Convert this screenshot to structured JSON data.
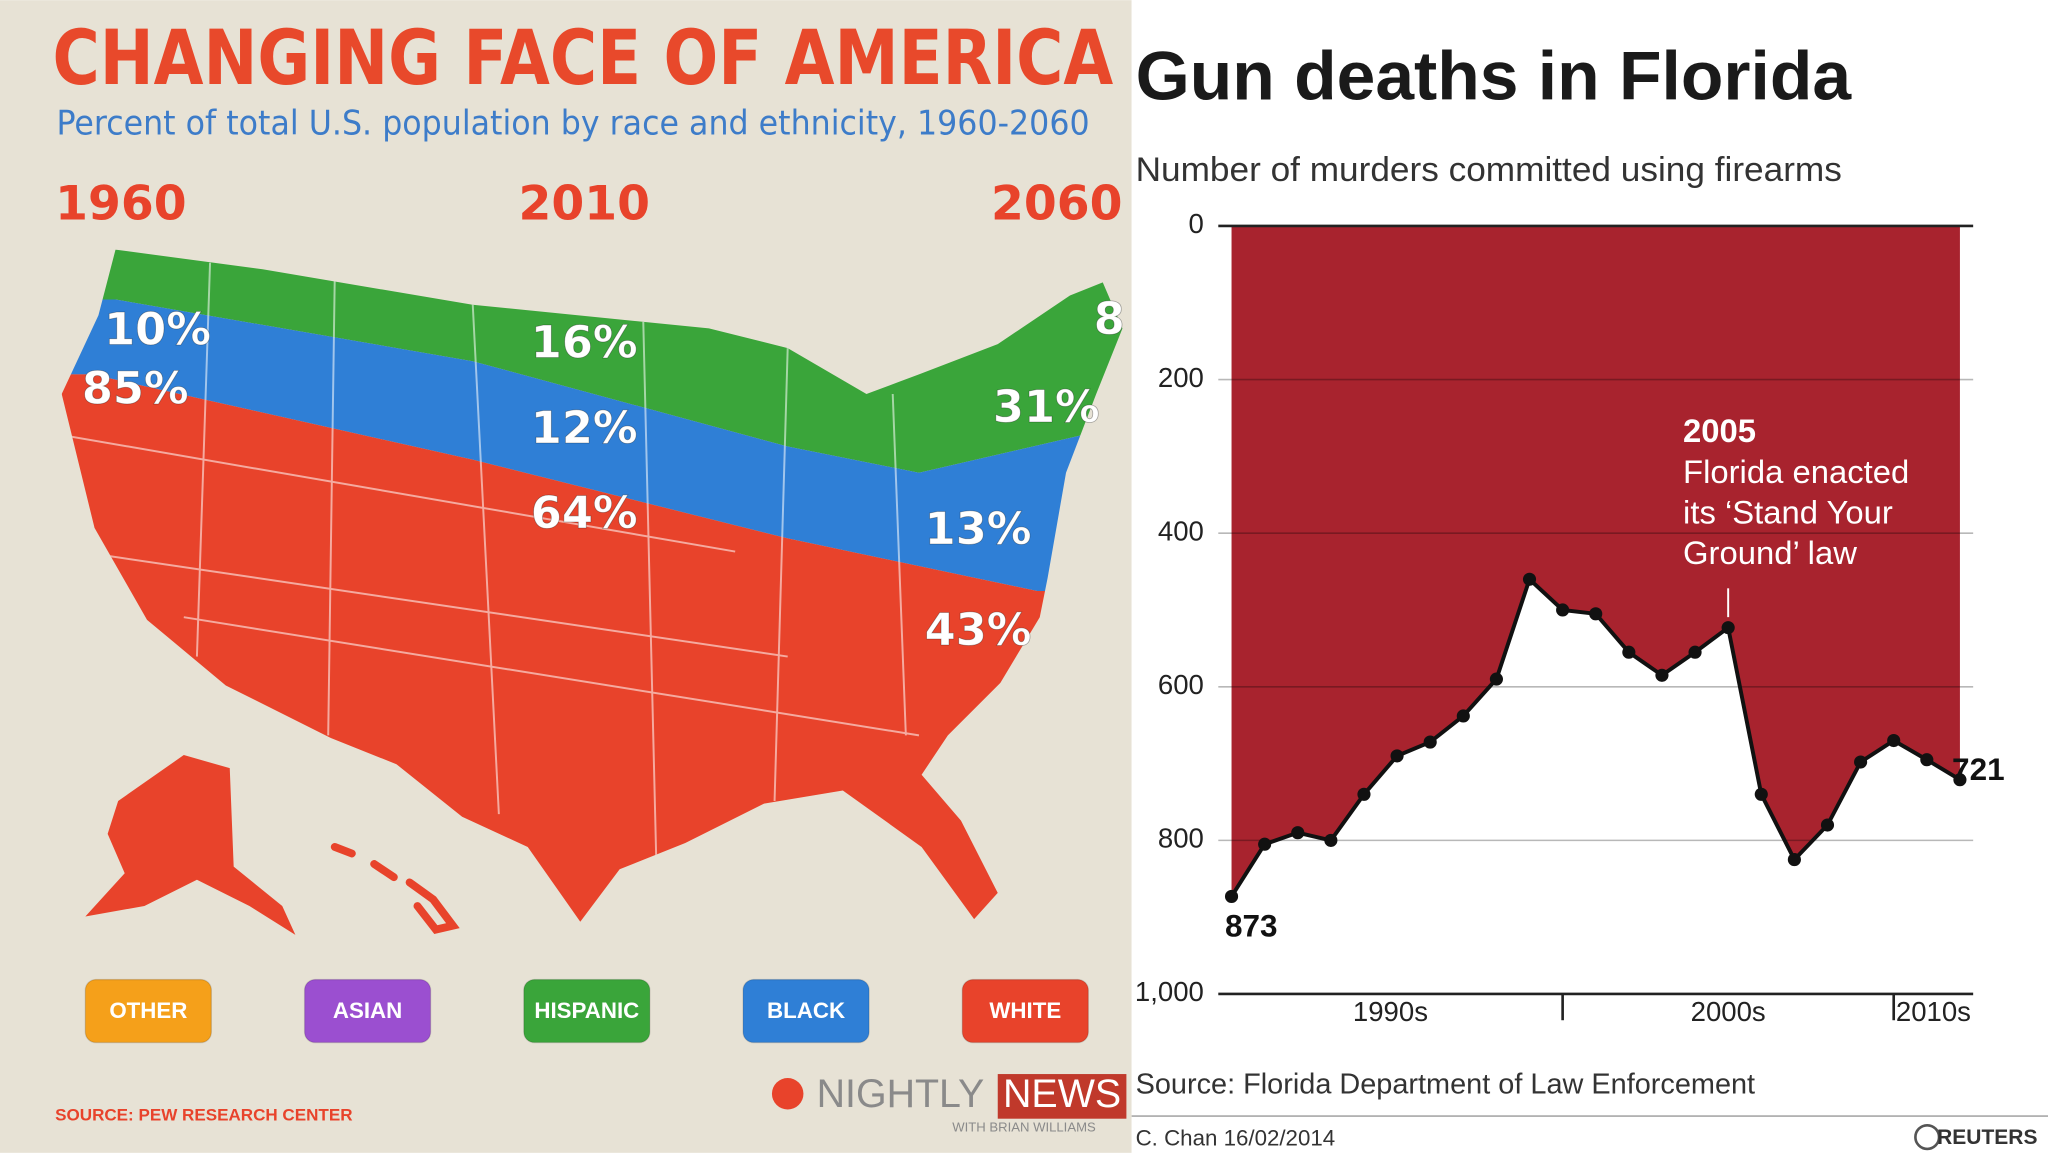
{
  "chart_data": [
    {
      "type": "map",
      "title": "CHANGING FACE OF AMERICA",
      "subtitle": "Percent of total U.S. population by race and ethnicity, 1960-2060",
      "categories": [
        "1960",
        "2010",
        "2060"
      ],
      "series": [
        {
          "name": "OTHER",
          "color": "#f5a01a",
          "values": [
            null,
            null,
            null
          ],
          "value_labels": [
            null,
            null,
            null
          ]
        },
        {
          "name": "ASIAN",
          "color": "#9b4fd0",
          "values": [
            null,
            null,
            8
          ],
          "value_labels": [
            null,
            null,
            "8"
          ]
        },
        {
          "name": "HISPANIC",
          "color": "#3aa53a",
          "values": [
            null,
            16,
            31
          ],
          "value_labels": [
            null,
            "16%",
            "31%"
          ]
        },
        {
          "name": "BLACK",
          "color": "#2f7fd6",
          "values": [
            10,
            12,
            13
          ],
          "value_labels": [
            "10%",
            "12%",
            "13%"
          ]
        },
        {
          "name": "WHITE",
          "color": "#e8432b",
          "values": [
            85,
            64,
            43
          ],
          "value_labels": [
            "85%",
            "64%",
            "43%"
          ]
        }
      ],
      "source": "SOURCE: PEW RESEARCH CENTER",
      "brand": [
        "NIGHTLY",
        "NEWS"
      ],
      "brand_credit": "WITH BRIAN WILLIAMS"
    },
    {
      "type": "line",
      "title": "Gun deaths in Florida",
      "subtitle": "Number of murders committed using firearms",
      "x": [
        1990,
        1991,
        1992,
        1993,
        1994,
        1995,
        1996,
        1997,
        1998,
        1999,
        2000,
        2001,
        2002,
        2003,
        2004,
        2005,
        2006,
        2007,
        2008,
        2009,
        2010,
        2011,
        2012
      ],
      "values": [
        873,
        805,
        790,
        800,
        740,
        690,
        672,
        638,
        590,
        460,
        500,
        505,
        555,
        585,
        555,
        523,
        740,
        825,
        780,
        698,
        670,
        695,
        721
      ],
      "color": "#a8232e",
      "line_color": "#111111",
      "ylim": [
        0,
        1000
      ],
      "y_inverted": true,
      "yticks": [
        0,
        200,
        400,
        600,
        800,
        {
          "value": 1000,
          "label": "1,000"
        }
      ],
      "xlim": [
        1989.6,
        2012.4
      ],
      "xticks": [
        2000,
        2010
      ],
      "decades": [
        "1990s",
        "2000s",
        "2010s"
      ],
      "grid": true,
      "annotation": {
        "x": 2005,
        "title": "2005",
        "lines": [
          "Florida enacted",
          "its ‘Stand Your",
          "Ground’ law"
        ]
      },
      "source": "Source: Florida Department of Law Enforcement",
      "credit": "C. Chan  16/02/2014",
      "agency": "REUTERS"
    }
  ]
}
